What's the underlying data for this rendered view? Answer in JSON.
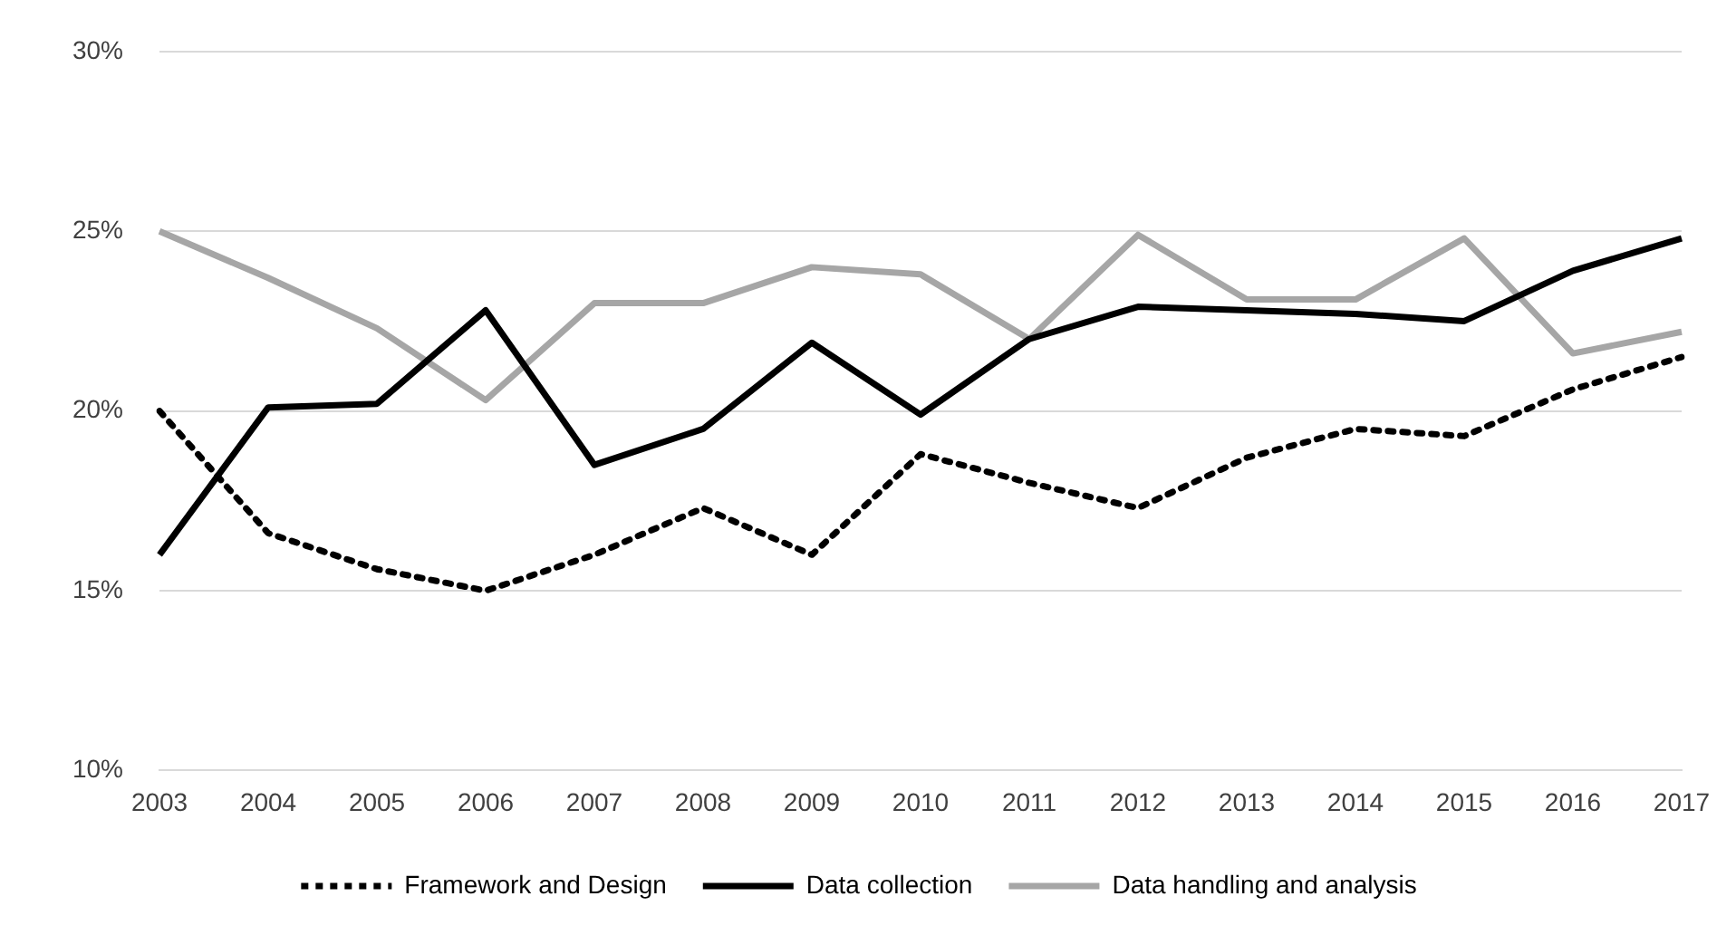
{
  "chart_data": {
    "type": "line",
    "categories": [
      "2003",
      "2004",
      "2005",
      "2006",
      "2007",
      "2008",
      "2009",
      "2010",
      "2011",
      "2012",
      "2013",
      "2014",
      "2015",
      "2016",
      "2017"
    ],
    "series": [
      {
        "name": "Framework and Design",
        "color": "#000000",
        "line_style": "dotted",
        "values": [
          20.0,
          16.6,
          15.6,
          15.0,
          16.0,
          17.3,
          16.0,
          18.8,
          18.0,
          17.3,
          18.7,
          19.5,
          19.3,
          20.6,
          21.5
        ]
      },
      {
        "name": "Data collection",
        "color": "#000000",
        "line_style": "solid",
        "values": [
          16.0,
          20.1,
          20.2,
          22.8,
          18.5,
          19.5,
          21.9,
          19.9,
          22.0,
          22.9,
          22.8,
          22.7,
          22.5,
          23.9,
          24.8
        ]
      },
      {
        "name": "Data handling and analysis",
        "color": "#a6a6a6",
        "line_style": "solid",
        "values": [
          25.0,
          23.7,
          22.3,
          20.3,
          23.0,
          23.0,
          24.0,
          23.8,
          22.0,
          24.9,
          23.1,
          23.1,
          24.8,
          21.6,
          22.2
        ]
      }
    ],
    "ylim": [
      10,
      30
    ],
    "yticks": [
      {
        "value": 10,
        "label": "10%"
      },
      {
        "value": 15,
        "label": "15%"
      },
      {
        "value": 20,
        "label": "20%"
      },
      {
        "value": 25,
        "label": "25%"
      },
      {
        "value": 30,
        "label": "30%"
      }
    ],
    "grid": "y",
    "legend": "bottom",
    "marker": "none"
  }
}
